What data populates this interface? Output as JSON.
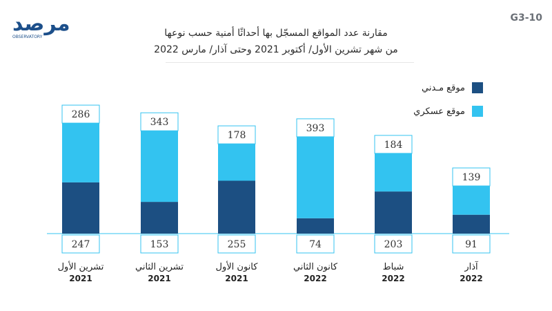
{
  "brand": {
    "logo_text": "مرصد",
    "logo_subtext": "OBSERVATORY"
  },
  "figure_code": "G3-10",
  "title": {
    "line1": "مقارنة عدد المواقع المسجّل بها أحداثًا أمنية حسب نوعها",
    "line2": "من شهر تشرين الأول/ أكتوبر 2021 وحتى آذار/ مارس 2022"
  },
  "colors": {
    "civilian": "#1c4f82",
    "military": "#33c3f0",
    "box_border": "#33c3f0",
    "axis": "#33c3f0",
    "label_text": "#333333"
  },
  "chart_data": {
    "type": "bar",
    "stacked": true,
    "categories": [
      {
        "month": "تشرين الأول",
        "year": "2021"
      },
      {
        "month": "تشرين الثاني",
        "year": "2021"
      },
      {
        "month": "كانون الأول",
        "year": "2021"
      },
      {
        "month": "كانون الثاني",
        "year": "2022"
      },
      {
        "month": "شباط",
        "year": "2022"
      },
      {
        "month": "آذار",
        "year": "2022"
      }
    ],
    "series": [
      {
        "name": "موقع مـدني",
        "key": "civilian",
        "values": [
          247,
          153,
          255,
          74,
          203,
          91
        ]
      },
      {
        "name": "موقع عسكري",
        "key": "military",
        "values": [
          286,
          343,
          178,
          393,
          184,
          139
        ]
      }
    ],
    "legend_position": "top-right",
    "grid": false
  }
}
